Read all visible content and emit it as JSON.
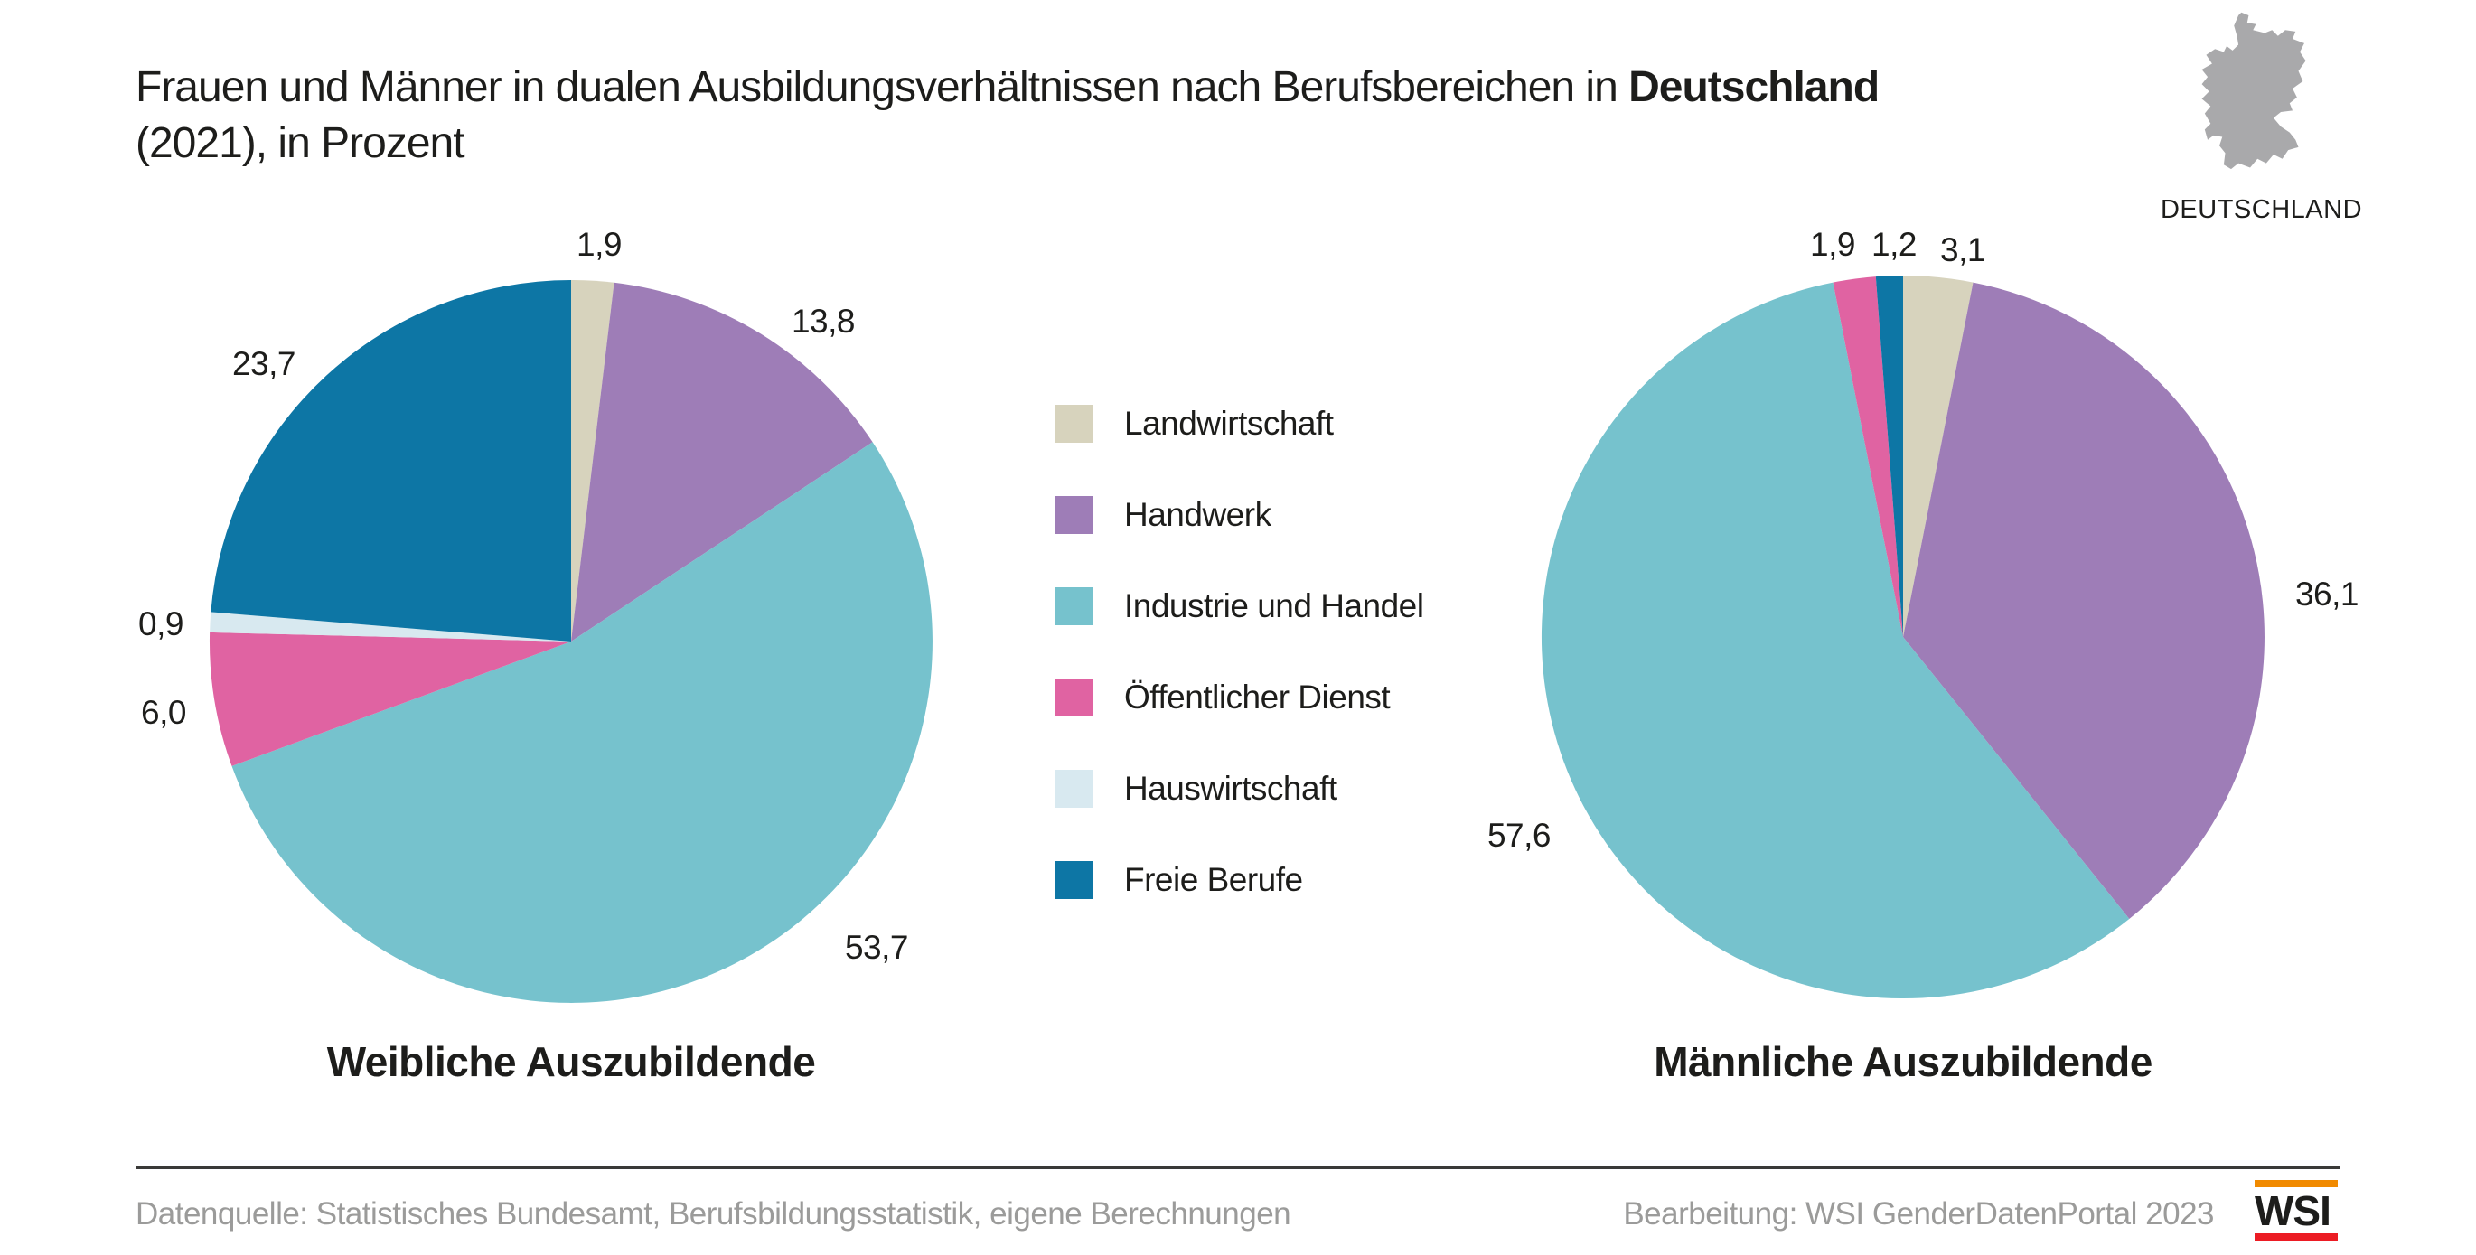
{
  "header": {
    "title_prefix": "Frauen und Männer in dualen Ausbildungsverhältnissen nach Berufsbereichen in ",
    "title_bold": "Deutschland",
    "title_line2": "(2021), in Prozent"
  },
  "region_badge": {
    "label": "DEUTSCHLAND",
    "map_color": "#a9a9ab"
  },
  "legend": {
    "items": [
      {
        "label": "Landwirtschaft",
        "color": "#d7d3bd"
      },
      {
        "label": "Handwerk",
        "color": "#9e7db7"
      },
      {
        "label": "Industrie und Handel",
        "color": "#76c2cd"
      },
      {
        "label": "Öffentlicher Dienst",
        "color": "#e063a2"
      },
      {
        "label": "Hauswirtschaft",
        "color": "#d8e9f0"
      },
      {
        "label": "Freie Berufe",
        "color": "#0d76a5"
      }
    ]
  },
  "chart_data": [
    {
      "type": "pie",
      "title": "Weibliche Auszubildende",
      "unit": "Prozent",
      "start_angle_deg": 0,
      "direction": "clockwise",
      "categories": [
        "Landwirtschaft",
        "Handwerk",
        "Industrie und Handel",
        "Öffentlicher Dienst",
        "Hauswirtschaft",
        "Freie Berufe"
      ],
      "values": [
        1.9,
        13.8,
        53.7,
        6.0,
        0.9,
        23.7
      ],
      "value_labels": [
        "1,9",
        "13,8",
        "53,7",
        "6,0",
        "0,9",
        "23,7"
      ]
    },
    {
      "type": "pie",
      "title": "Männliche Auszubildende",
      "unit": "Prozent",
      "start_angle_deg": 0,
      "direction": "clockwise",
      "categories": [
        "Landwirtschaft",
        "Handwerk",
        "Industrie und Handel",
        "Öffentlicher Dienst",
        "Hauswirtschaft",
        "Freie Berufe"
      ],
      "values": [
        3.1,
        36.1,
        57.6,
        1.9,
        null,
        1.2
      ],
      "value_labels": [
        "3,1",
        "36,1",
        "57,6",
        "1,9",
        null,
        "1,2"
      ]
    }
  ],
  "footer": {
    "source": "Datenquelle: Statistisches Bundesamt, Berufsbildungsstatistik, eigene Berechnungen",
    "credit": "Bearbeitung: WSI GenderDatenPortal 2023",
    "logo_text": "WSI",
    "logo_colors": {
      "top_bar": "#f18a00",
      "bottom_bar": "#ec1c24"
    }
  }
}
